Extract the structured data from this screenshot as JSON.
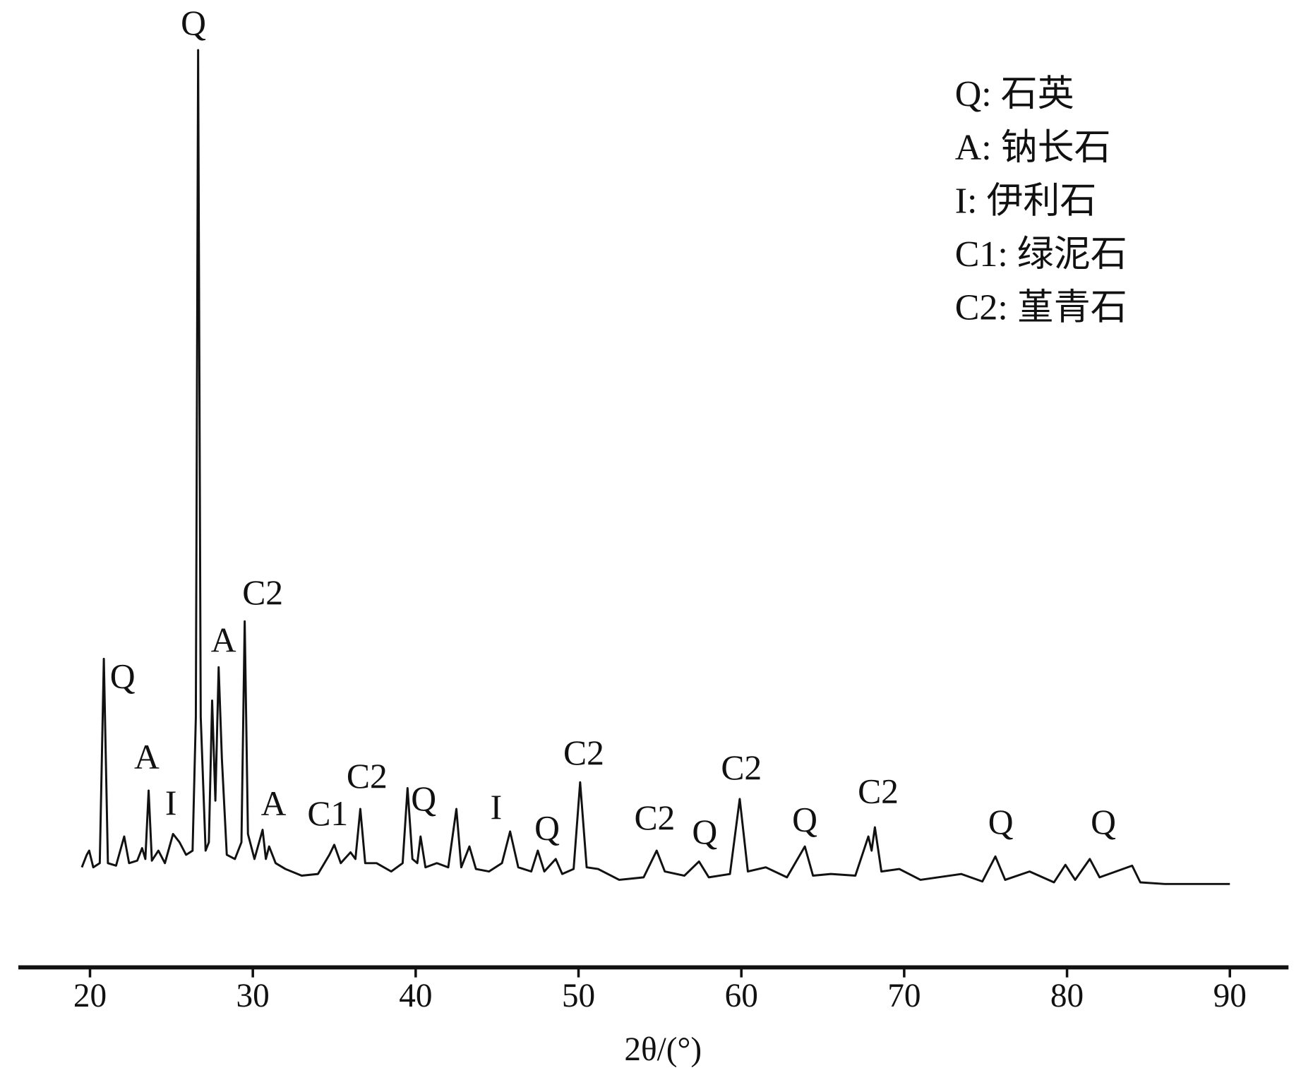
{
  "chart_data": {
    "type": "line",
    "x": [
      19.5,
      19.8,
      19.95,
      20.2,
      20.6,
      20.85,
      21.1,
      21.6,
      22.1,
      22.4,
      22.9,
      23.2,
      23.4,
      23.6,
      23.8,
      24.2,
      24.6,
      25.1,
      25.5,
      25.9,
      26.3,
      26.5,
      26.64,
      26.8,
      27.1,
      27.3,
      27.5,
      27.7,
      27.9,
      28.1,
      28.4,
      28.9,
      29.3,
      29.5,
      29.7,
      30.1,
      30.6,
      30.8,
      31,
      31.4,
      32,
      33,
      34,
      34.7,
      35,
      35.4,
      36,
      36.3,
      36.6,
      36.9,
      37.6,
      38.5,
      39.2,
      39.5,
      39.8,
      40.1,
      40.3,
      40.6,
      41.3,
      42,
      42.5,
      42.8,
      43.3,
      43.7,
      44.5,
      45.3,
      45.8,
      46.3,
      47.1,
      47.5,
      47.9,
      48.6,
      49,
      49.7,
      50.1,
      50.5,
      51.2,
      52.5,
      54,
      54.8,
      55.3,
      56.5,
      57.4,
      58,
      59.3,
      59.9,
      60.4,
      61.5,
      62.8,
      63.9,
      64.4,
      65.5,
      67,
      67.8,
      68,
      68.2,
      68.6,
      69.7,
      71,
      73.5,
      74.8,
      75.6,
      76.2,
      77.7,
      79.2,
      79.9,
      80.5,
      81.4,
      82,
      84,
      84.5,
      86,
      88,
      90
    ],
    "series": [
      {
        "color": "#111111",
        "values": [
          120,
          135,
          140,
          120,
          125,
          370,
          125,
          122,
          157,
          125,
          128,
          143,
          130,
          212,
          128,
          140,
          125,
          160,
          150,
          135,
          140,
          300,
          1100,
          300,
          140,
          150,
          320,
          200,
          360,
          250,
          135,
          130,
          150,
          415,
          160,
          130,
          165,
          130,
          145,
          125,
          118,
          110,
          112,
          135,
          147,
          125,
          138,
          130,
          190,
          125,
          125,
          115,
          125,
          215,
          130,
          125,
          157,
          120,
          125,
          120,
          190,
          120,
          145,
          118,
          115,
          125,
          163,
          120,
          115,
          140,
          115,
          130,
          112,
          118,
          222,
          120,
          118,
          105,
          108,
          140,
          115,
          110,
          127,
          108,
          112,
          202,
          115,
          120,
          108,
          145,
          110,
          112,
          110,
          157,
          140,
          168,
          115,
          118,
          105,
          112,
          103,
          133,
          105,
          115,
          102,
          123,
          105,
          130,
          108,
          122,
          102,
          100,
          100,
          100
        ]
      }
    ],
    "xlim": [
      15.6,
      93.6
    ],
    "ylim": [
      0,
      1100
    ],
    "xticks": [
      20,
      30,
      40,
      50,
      60,
      70,
      80,
      90
    ],
    "x_label": "2θ/(°)",
    "annotations": [
      "Q",
      "Q",
      "A",
      "I",
      "A",
      "C2",
      "A",
      "C1",
      "C2",
      "Q",
      "I",
      "Q",
      "C2",
      "C2",
      "Q",
      "C2",
      "Q",
      "C2",
      "Q",
      "Q"
    ],
    "legend": [
      "Q: 石英",
      "A: 钠长石",
      "I: 伊利石",
      "C1: 绿泥石",
      "C2: 堇青石"
    ]
  }
}
